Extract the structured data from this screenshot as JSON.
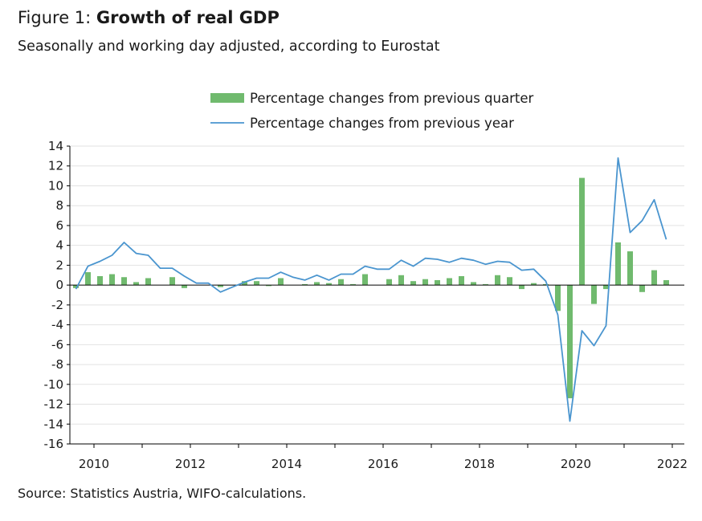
{
  "figure_label": "Figure 1:",
  "title": "Growth of real GDP",
  "subtitle": "Seasonally and working day adjusted, according to Eurostat",
  "source": "Source: Statistics Austria, WIFO-calculations.",
  "colors": {
    "bars": "#70ba6e",
    "line": "#4a95cf",
    "grid": "#e2e2e2",
    "axis": "#000000"
  },
  "chart_data": {
    "type": "bar+line",
    "ylim": [
      -16,
      14
    ],
    "ytick_labels": [
      "14",
      "12",
      "10",
      "8",
      "6",
      "4",
      "2",
      "0",
      "-2",
      "-4",
      "-6",
      "-8",
      "-10",
      "-12",
      "-14",
      "-16"
    ],
    "xtick_labels": [
      "2010",
      "2012",
      "2014",
      "2016",
      "2018",
      "2020",
      "2022"
    ],
    "xlim_years": [
      2009.5,
      2022.25
    ],
    "grid": "horizontal",
    "legend_position": "top-center",
    "quarters": [
      "2009Q3",
      "2009Q4",
      "2010Q1",
      "2010Q2",
      "2010Q3",
      "2010Q4",
      "2011Q1",
      "2011Q2",
      "2011Q3",
      "2011Q4",
      "2012Q1",
      "2012Q2",
      "2012Q3",
      "2012Q4",
      "2013Q1",
      "2013Q2",
      "2013Q3",
      "2013Q4",
      "2014Q1",
      "2014Q2",
      "2014Q3",
      "2014Q4",
      "2015Q1",
      "2015Q2",
      "2015Q3",
      "2015Q4",
      "2016Q1",
      "2016Q2",
      "2016Q3",
      "2016Q4",
      "2017Q1",
      "2017Q2",
      "2017Q3",
      "2017Q4",
      "2018Q1",
      "2018Q2",
      "2018Q3",
      "2018Q4",
      "2019Q1",
      "2019Q2",
      "2019Q3",
      "2019Q4",
      "2020Q1",
      "2020Q2",
      "2020Q3",
      "2020Q4",
      "2021Q1",
      "2021Q2",
      "2021Q3",
      "2021Q4"
    ],
    "series": [
      {
        "name": "Percentage changes from previous quarter",
        "kind": "bar",
        "values": [
          -0.3,
          1.3,
          0.9,
          1.1,
          0.8,
          0.3,
          0.7,
          0.0,
          0.8,
          -0.3,
          0.0,
          0.0,
          -0.2,
          0.0,
          0.4,
          0.4,
          -0.1,
          0.7,
          0.0,
          0.1,
          0.3,
          0.2,
          0.6,
          0.1,
          1.1,
          0.0,
          0.6,
          1.0,
          0.4,
          0.6,
          0.5,
          0.7,
          0.9,
          0.3,
          0.1,
          1.0,
          0.8,
          -0.4,
          0.2,
          0.1,
          -2.6,
          -11.4,
          10.8,
          -1.9,
          -0.4,
          4.3,
          3.4,
          -0.7,
          1.5,
          0.5
        ]
      },
      {
        "name": "Percentage changes from previous year",
        "kind": "line",
        "values": [
          -0.4,
          1.9,
          2.4,
          3.0,
          4.3,
          3.2,
          3.0,
          1.7,
          1.7,
          0.9,
          0.2,
          0.2,
          -0.7,
          -0.2,
          0.3,
          0.7,
          0.7,
          1.3,
          0.8,
          0.5,
          1.0,
          0.5,
          1.1,
          1.1,
          1.9,
          1.6,
          1.6,
          2.5,
          1.9,
          2.7,
          2.6,
          2.3,
          2.7,
          2.5,
          2.1,
          2.4,
          2.3,
          1.5,
          1.6,
          0.4,
          -3.0,
          -13.7,
          -4.6,
          -6.1,
          -4.1,
          12.8,
          5.3,
          6.5,
          8.6,
          4.6
        ]
      }
    ]
  }
}
